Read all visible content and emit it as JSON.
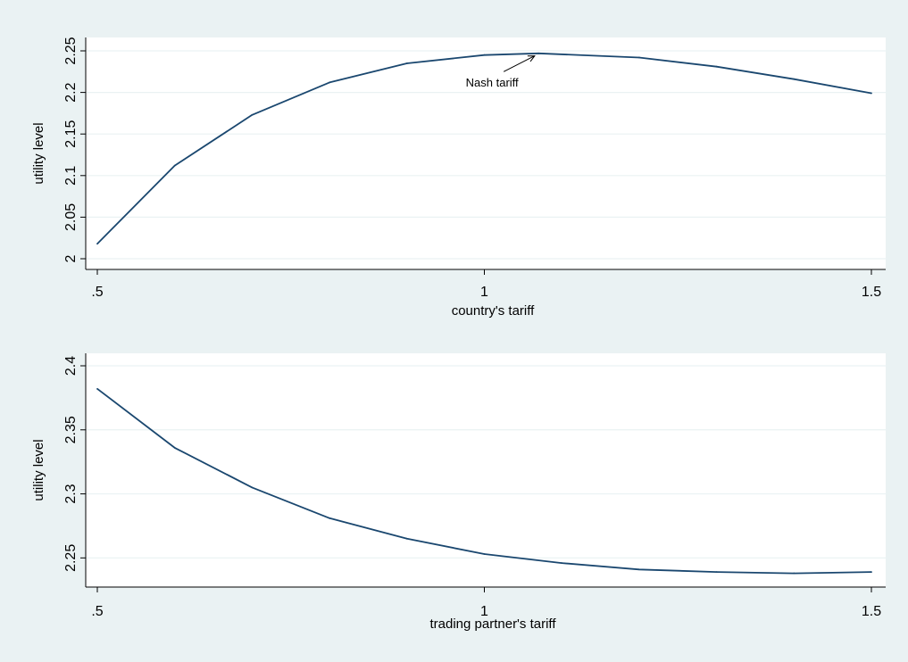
{
  "colors": {
    "background": "#eaf2f3",
    "plot_area": "#ffffff",
    "line": "#1a476f",
    "grid": "#eaf2f3",
    "axis": "#000000"
  },
  "chart_data": [
    {
      "type": "line",
      "title": "",
      "xlabel": "country's tariff",
      "ylabel": "utility level",
      "xlim": [
        0.5,
        1.5
      ],
      "ylim": [
        2.0,
        2.25
      ],
      "x_ticks": [
        0.5,
        1,
        1.5
      ],
      "x_tick_labels": [
        ".5",
        "1",
        "1.5"
      ],
      "y_ticks": [
        2.0,
        2.05,
        2.1,
        2.15,
        2.2,
        2.25
      ],
      "y_tick_labels": [
        "2",
        "2.05",
        "2.1",
        "2.15",
        "2.2",
        "2.25"
      ],
      "grid": true,
      "series": [
        {
          "x": [
            0.5,
            0.6,
            0.7,
            0.8,
            0.9,
            1.0,
            1.07,
            1.2,
            1.3,
            1.4,
            1.5
          ],
          "values": [
            2.018,
            2.112,
            2.173,
            2.212,
            2.235,
            2.245,
            2.247,
            2.242,
            2.231,
            2.216,
            2.199
          ]
        }
      ],
      "annotation": {
        "text": "Nash tariff",
        "arrow_from": [
          1.025,
          2.225
        ],
        "arrow_to": [
          1.065,
          2.244
        ],
        "text_at": [
          1.01,
          2.207
        ]
      }
    },
    {
      "type": "line",
      "title": "",
      "xlabel": "trading partner's tariff",
      "ylabel": "utility level",
      "xlim": [
        0.5,
        1.5
      ],
      "ylim": [
        2.237,
        2.4
      ],
      "x_ticks": [
        0.5,
        1,
        1.5
      ],
      "x_tick_labels": [
        ".5",
        "1",
        "1.5"
      ],
      "y_ticks": [
        2.25,
        2.3,
        2.35,
        2.4
      ],
      "y_tick_labels": [
        "2.25",
        "2.3",
        "2.35",
        "2.4"
      ],
      "grid": true,
      "series": [
        {
          "x": [
            0.5,
            0.6,
            0.7,
            0.8,
            0.9,
            1.0,
            1.1,
            1.2,
            1.3,
            1.4,
            1.5
          ],
          "values": [
            2.382,
            2.336,
            2.305,
            2.281,
            2.265,
            2.253,
            2.246,
            2.241,
            2.239,
            2.238,
            2.239
          ]
        }
      ]
    }
  ]
}
